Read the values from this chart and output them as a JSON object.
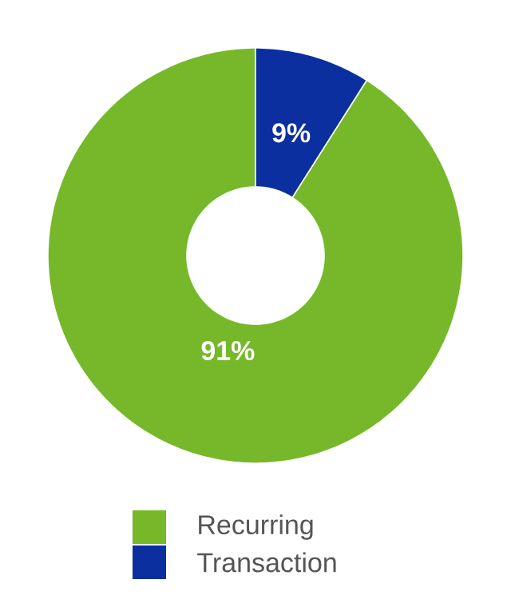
{
  "chart_data": {
    "type": "donut",
    "categories": [
      "Recurring",
      "Transaction"
    ],
    "values": [
      91,
      9
    ],
    "colors": [
      "#76b82a",
      "#0b2f9f"
    ],
    "value_labels": [
      "91%",
      "9%"
    ],
    "legend": "bottom"
  }
}
